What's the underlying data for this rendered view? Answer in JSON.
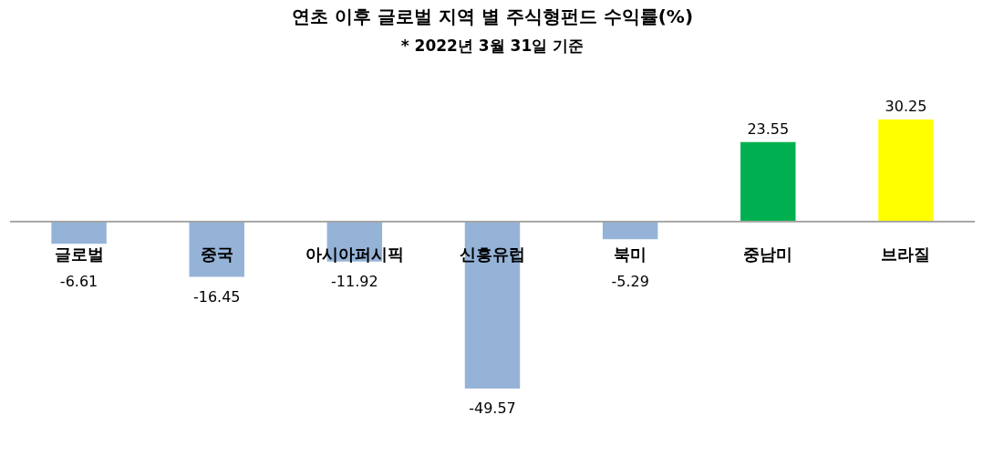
{
  "chart_data": {
    "type": "bar",
    "title": "연초 이후 글로벌 지역 별 주식형펀드 수익률(%)",
    "subtitle": "* 2022년 3월 31일 기준",
    "categories": [
      "글로벌",
      "중국",
      "아시아퍼시픽",
      "신흥유럽",
      "북미",
      "중남미",
      "브라질"
    ],
    "values": [
      -6.61,
      -16.45,
      -11.92,
      -49.57,
      -5.29,
      23.55,
      30.25
    ],
    "colors": [
      "#95b3d7",
      "#95b3d7",
      "#95b3d7",
      "#95b3d7",
      "#95b3d7",
      "#00b050",
      "#ffff00"
    ],
    "data_labels": true
  }
}
